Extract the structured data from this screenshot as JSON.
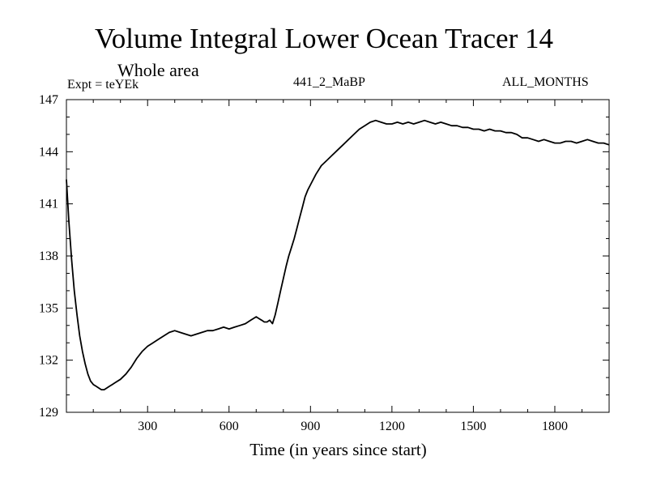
{
  "chart_data": {
    "type": "line",
    "title": "Volume Integral Lower Ocean Tracer 14",
    "subtitle": "Whole area",
    "expt_label": "Expt = teYEk",
    "run_label": "441_2_MaBP",
    "months_label": "ALL_MONTHS",
    "xlabel": "Time (in years since start)",
    "ylabel": "",
    "xlim": [
      1,
      2000
    ],
    "ylim": [
      129,
      147
    ],
    "x_ticks": [
      300,
      600,
      900,
      1200,
      1500,
      1800
    ],
    "x_tick_labels": [
      "300",
      "600",
      "900",
      "1200",
      "1500",
      "1800"
    ],
    "y_ticks": [
      129,
      132,
      135,
      138,
      141,
      144,
      147
    ],
    "y_tick_labels": [
      "129",
      "132",
      "135",
      "138",
      "141",
      "144",
      "147"
    ],
    "grid": false,
    "series": [
      {
        "name": "Tracer 14",
        "color": "#000000",
        "x": [
          1,
          10,
          20,
          30,
          40,
          50,
          60,
          70,
          80,
          90,
          100,
          110,
          120,
          130,
          140,
          150,
          160,
          170,
          180,
          200,
          220,
          240,
          260,
          280,
          300,
          320,
          340,
          360,
          380,
          400,
          420,
          440,
          460,
          480,
          500,
          520,
          540,
          560,
          580,
          600,
          620,
          640,
          660,
          680,
          700,
          710,
          720,
          730,
          740,
          750,
          760,
          770,
          780,
          790,
          800,
          810,
          820,
          830,
          840,
          850,
          860,
          870,
          880,
          890,
          900,
          920,
          940,
          960,
          980,
          1000,
          1020,
          1040,
          1060,
          1080,
          1100,
          1120,
          1140,
          1160,
          1180,
          1200,
          1220,
          1240,
          1260,
          1280,
          1300,
          1320,
          1340,
          1360,
          1380,
          1400,
          1420,
          1440,
          1460,
          1480,
          1500,
          1520,
          1540,
          1560,
          1580,
          1600,
          1620,
          1640,
          1660,
          1680,
          1700,
          1720,
          1740,
          1760,
          1780,
          1800,
          1820,
          1840,
          1860,
          1880,
          1900,
          1920,
          1940,
          1960,
          1980,
          2000
        ],
        "values": [
          142.4,
          140.0,
          137.8,
          136.0,
          134.6,
          133.4,
          132.5,
          131.8,
          131.2,
          130.8,
          130.6,
          130.5,
          130.4,
          130.3,
          130.3,
          130.4,
          130.5,
          130.6,
          130.7,
          130.9,
          131.2,
          131.6,
          132.1,
          132.5,
          132.8,
          133.0,
          133.2,
          133.4,
          133.6,
          133.7,
          133.6,
          133.5,
          133.4,
          133.5,
          133.6,
          133.7,
          133.7,
          133.8,
          133.9,
          133.8,
          133.9,
          134.0,
          134.1,
          134.3,
          134.5,
          134.4,
          134.3,
          134.2,
          134.2,
          134.3,
          134.1,
          134.6,
          135.3,
          136.0,
          136.7,
          137.4,
          138.0,
          138.5,
          139.0,
          139.6,
          140.2,
          140.8,
          141.4,
          141.8,
          142.1,
          142.7,
          143.2,
          143.5,
          143.8,
          144.1,
          144.4,
          144.7,
          145.0,
          145.3,
          145.5,
          145.7,
          145.8,
          145.7,
          145.6,
          145.6,
          145.7,
          145.6,
          145.7,
          145.6,
          145.7,
          145.8,
          145.7,
          145.6,
          145.7,
          145.6,
          145.5,
          145.5,
          145.4,
          145.4,
          145.3,
          145.3,
          145.2,
          145.3,
          145.2,
          145.2,
          145.1,
          145.1,
          145.0,
          144.8,
          144.8,
          144.7,
          144.6,
          144.7,
          144.6,
          144.5,
          144.5,
          144.6,
          144.6,
          144.5,
          144.6,
          144.7,
          144.6,
          144.5,
          144.5,
          144.4
        ]
      }
    ]
  }
}
